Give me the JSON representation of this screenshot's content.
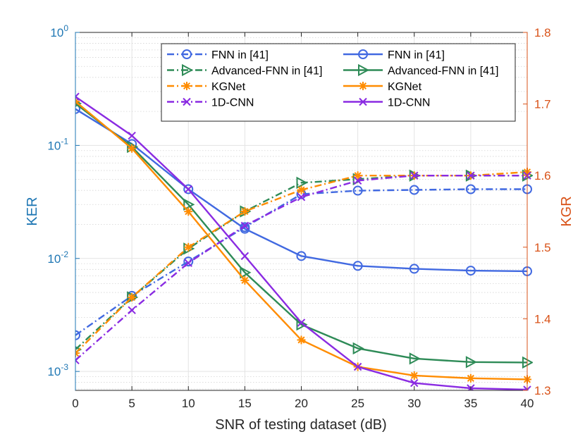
{
  "chart_data": {
    "type": "line",
    "xlabel": "SNR of testing dataset (dB)",
    "ylabel_left": "KER",
    "ylabel_right": "KGR",
    "x": [
      0,
      5,
      10,
      15,
      20,
      25,
      30,
      35,
      40
    ],
    "xlim": [
      0,
      40
    ],
    "x_ticks": [
      "0",
      "5",
      "10",
      "15",
      "20",
      "25",
      "30",
      "35",
      "40"
    ],
    "ylim_left": [
      0.00068,
      1
    ],
    "yscale_left": "log",
    "ylim_right": [
      1.3,
      1.8
    ],
    "right_ticks": [
      "1.3",
      "1.4",
      "1.5",
      "1.6",
      "1.7",
      "1.8"
    ],
    "left_tick_labels": [
      {
        "base": "10",
        "exp": "-3"
      },
      {
        "base": "10",
        "exp": "-2"
      },
      {
        "base": "10",
        "exp": "-1"
      },
      {
        "base": "10",
        "exp": "0"
      }
    ],
    "grid": true,
    "legend_position": "top-right",
    "series": [
      {
        "name": "FNN in [41]",
        "axis": "right",
        "style": "dashdot",
        "color": "#4169e1",
        "marker": "circle",
        "values": [
          1.377,
          1.432,
          1.48,
          1.528,
          1.574,
          1.579,
          1.58,
          1.581,
          1.581
        ]
      },
      {
        "name": "FNN in [41]",
        "axis": "left",
        "style": "solid",
        "color": "#4169e1",
        "marker": "circle",
        "values": [
          0.21,
          0.103,
          0.041,
          0.0183,
          0.0105,
          0.0086,
          0.0081,
          0.0078,
          0.0077
        ]
      },
      {
        "name": "Advanced-FNN in [41]",
        "axis": "right",
        "style": "dashdot",
        "color": "#2e8b57",
        "marker": "triangle-right",
        "values": [
          1.357,
          1.43,
          1.498,
          1.55,
          1.59,
          1.595,
          1.6,
          1.6,
          1.6
        ]
      },
      {
        "name": "Advanced-FNN in [41]",
        "axis": "left",
        "style": "solid",
        "color": "#2e8b57",
        "marker": "triangle-right",
        "values": [
          0.235,
          0.097,
          0.03,
          0.0075,
          0.0026,
          0.0016,
          0.0013,
          0.00121,
          0.0012
        ]
      },
      {
        "name": "KGNet",
        "axis": "right",
        "style": "dashdot",
        "color": "#ff8c00",
        "marker": "asterisk",
        "values": [
          1.352,
          1.43,
          1.5,
          1.55,
          1.58,
          1.6,
          1.6,
          1.6,
          1.605
        ]
      },
      {
        "name": "KGNet",
        "axis": "left",
        "style": "solid",
        "color": "#ff8c00",
        "marker": "asterisk",
        "values": [
          0.245,
          0.094,
          0.026,
          0.0064,
          0.0019,
          0.0011,
          0.00092,
          0.00087,
          0.00085
        ]
      },
      {
        "name": "1D-CNN",
        "axis": "right",
        "style": "dashdot",
        "color": "#8a2be2",
        "marker": "x",
        "values": [
          1.342,
          1.412,
          1.478,
          1.53,
          1.57,
          1.593,
          1.6,
          1.6,
          1.6
        ]
      },
      {
        "name": "1D-CNN",
        "axis": "left",
        "style": "solid",
        "color": "#8a2be2",
        "marker": "x",
        "values": [
          0.27,
          0.122,
          0.041,
          0.0105,
          0.0027,
          0.0011,
          0.00079,
          0.00071,
          0.00069
        ]
      }
    ]
  },
  "colors": {
    "left_axis": "#1f77b4",
    "right_axis": "#d95319",
    "grid": "#e3e3e3",
    "grid_minor": "#ececec"
  }
}
